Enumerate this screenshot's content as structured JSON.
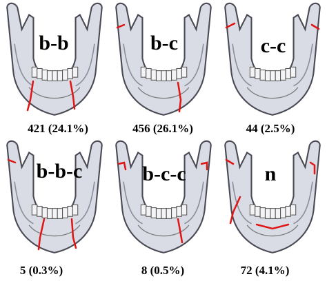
{
  "panels": [
    {
      "label": "b-b",
      "caption": "421 (24.1%)"
    },
    {
      "label": "b-c",
      "caption": "456 (26.1%)"
    },
    {
      "label": "c-c",
      "caption": "44 (2.5%)"
    },
    {
      "label": "b-b-c",
      "caption": "5 (0.3%)"
    },
    {
      "label": "b-c-c",
      "caption": "8 (0.5%)"
    },
    {
      "label": "n",
      "caption": "72 (4.1%)"
    }
  ]
}
